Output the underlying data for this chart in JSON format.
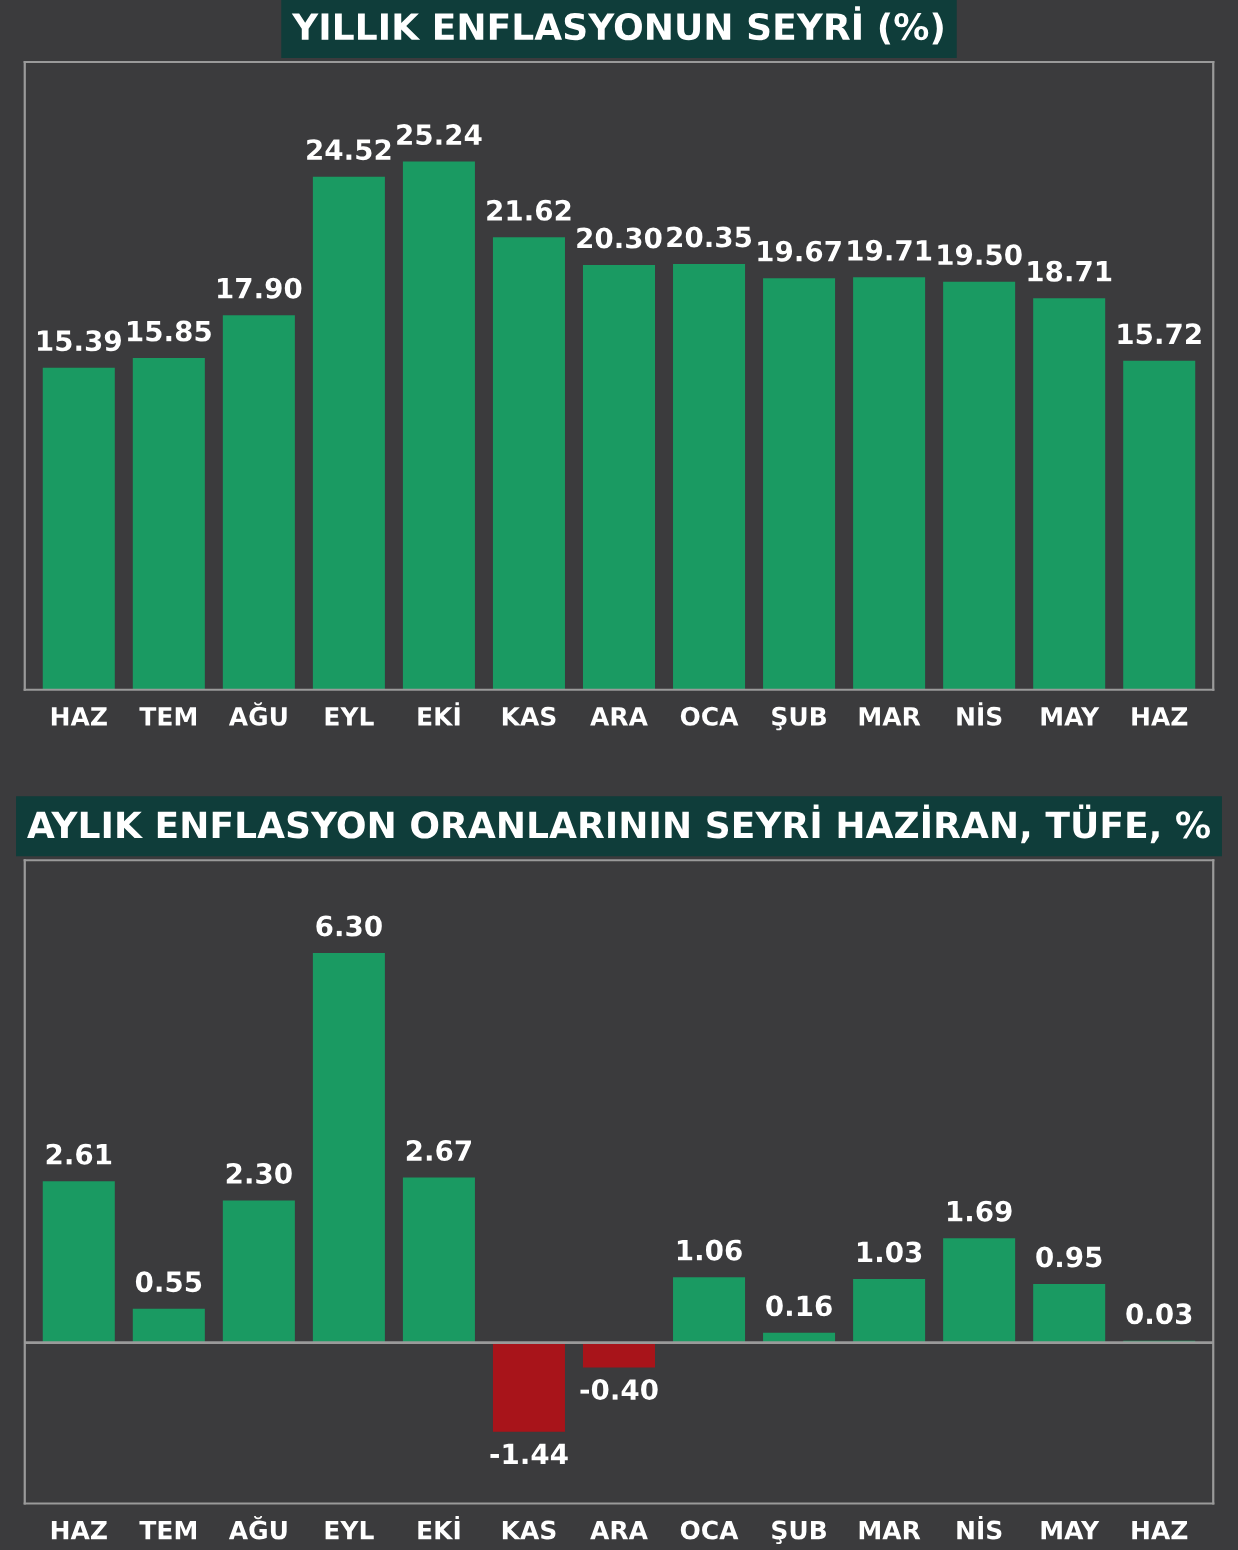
{
  "chart_data": [
    {
      "type": "bar",
      "title": "YILLIK ENFLASYONUN SEYRİ (%)",
      "categories": [
        "HAZ",
        "TEM",
        "AĞU",
        "EYL",
        "EKİ",
        "KAS",
        "ARA",
        "OCA",
        "ŞUB",
        "MAR",
        "NİS",
        "MAY",
        "HAZ"
      ],
      "values": [
        15.39,
        15.85,
        17.9,
        24.52,
        25.24,
        21.62,
        20.3,
        20.35,
        19.67,
        19.71,
        19.5,
        18.71,
        15.72
      ],
      "value_labels": [
        "15.39",
        "15.85",
        "17.90",
        "24.52",
        "25.24",
        "21.62",
        "20.30",
        "20.35",
        "19.67",
        "19.71",
        "19.50",
        "18.71",
        "15.72"
      ],
      "color": "#1a9a62",
      "ylim": [
        0,
        30
      ],
      "tick_labels": "x",
      "grid": false,
      "legend": false
    },
    {
      "type": "bar",
      "title": "AYLIK ENFLASYON ORANLARININ SEYRİ HAZİRAN, TÜFE, %",
      "categories": [
        "HAZ",
        "TEM",
        "AĞU",
        "EYL",
        "EKİ",
        "KAS",
        "ARA",
        "OCA",
        "ŞUB",
        "MAR",
        "NİS",
        "MAY",
        "HAZ"
      ],
      "values": [
        2.61,
        0.55,
        2.3,
        6.3,
        2.67,
        -1.44,
        -0.4,
        1.06,
        0.16,
        1.03,
        1.69,
        0.95,
        0.03
      ],
      "value_labels": [
        "2.61",
        "0.55",
        "2.30",
        "6.30",
        "2.67",
        "-1.44",
        "-0.40",
        "1.06",
        "0.16",
        "1.03",
        "1.69",
        "0.95",
        "0.03"
      ],
      "colors": [
        "#1a9a62",
        "#1a9a62",
        "#1a9a62",
        "#1a9a62",
        "#1a9a62",
        "#a8141a",
        "#a8141a",
        "#1a9a62",
        "#1a9a62",
        "#1a9a62",
        "#1a9a62",
        "#1a9a62",
        "#1a9a62"
      ],
      "ylim": [
        -2.6,
        7.8
      ],
      "tick_labels": "x",
      "grid": false,
      "legend": false,
      "ref_lines": [
        {
          "axis": "y",
          "value": 0,
          "color": "#9a9a9a"
        }
      ]
    }
  ]
}
